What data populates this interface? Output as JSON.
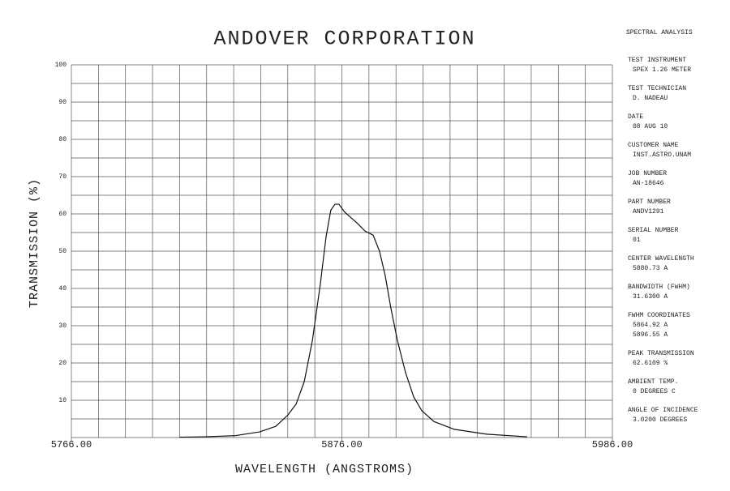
{
  "chart_data": {
    "type": "line",
    "title": "ANDOVER CORPORATION",
    "xlabel": "WAVELENGTH (ANGSTROMS)",
    "ylabel": "TRANSMISSION (%)",
    "x": [
      5810,
      5820,
      5832.6,
      5842.5,
      5849.1,
      5854,
      5857.4,
      5860.7,
      5864,
      5867.2,
      5869.6,
      5871.5,
      5873.2,
      5874.8,
      5877.1,
      5882.1,
      5885.4,
      5888.7,
      5891.3,
      5893.6,
      5895.9,
      5898.6,
      5901.9,
      5905.2,
      5908.5,
      5913.4,
      5921.7,
      5934.9,
      5951.3
    ],
    "values": [
      0.1,
      0.2,
      0.5,
      1.5,
      3,
      6,
      9,
      15,
      26,
      41,
      54,
      61,
      62.6,
      62.6,
      60.5,
      57.6,
      55.4,
      54.3,
      50,
      43.5,
      34.8,
      26,
      17.4,
      10.9,
      7.2,
      4.3,
      2.2,
      0.9,
      0.2
    ],
    "color": "#111111",
    "xlim": [
      5766,
      5986
    ],
    "ylim": [
      0,
      100
    ],
    "xticks": [
      {
        "value": 5766,
        "label": "5766.00"
      },
      {
        "value": 5876,
        "label": "5876.00"
      },
      {
        "value": 5986,
        "label": "5986.00"
      }
    ],
    "yticks": [
      10,
      20,
      30,
      40,
      50,
      60,
      70,
      80,
      90,
      100
    ],
    "xgrid": [
      5766,
      5777,
      5788,
      5799,
      5810,
      5821,
      5832,
      5843,
      5854,
      5865,
      5876,
      5887,
      5898,
      5909,
      5920,
      5931,
      5942,
      5953,
      5964,
      5975,
      5986
    ],
    "ygrid": [
      0,
      5,
      10,
      15,
      20,
      25,
      30,
      35,
      40,
      45,
      50,
      55,
      60,
      65,
      70,
      75,
      80,
      85,
      90,
      95,
      100
    ],
    "grid": true
  },
  "panel": {
    "title": "SPECTRAL ANALYSIS",
    "fields": [
      {
        "label": "TEST INSTRUMENT",
        "lines": [
          "SPEX 1.26 METER"
        ]
      },
      {
        "label": "TEST TECHNICIAN",
        "lines": [
          "D. NADEAU"
        ]
      },
      {
        "label": "DATE",
        "lines": [
          "08 AUG 10"
        ]
      },
      {
        "label": "CUSTOMER NAME",
        "lines": [
          "INST.ASTRO.UNAM"
        ]
      },
      {
        "label": "JOB NUMBER",
        "lines": [
          "AN-18646"
        ]
      },
      {
        "label": "PART NUMBER",
        "lines": [
          "ANDV1291"
        ]
      },
      {
        "label": "SERIAL NUMBER",
        "lines": [
          "01"
        ]
      },
      {
        "label": "CENTER WAVELENGTH",
        "lines": [
          "5880.73 A"
        ]
      },
      {
        "label": "BANDWIDTH (FWHM)",
        "lines": [
          "31.6300 A"
        ]
      },
      {
        "label": "FWHM COORDINATES",
        "lines": [
          "5864.92 A",
          "5896.55 A"
        ]
      },
      {
        "label": "PEAK TRANSMISSION",
        "lines": [
          "62.6109 %"
        ]
      },
      {
        "label": "AMBIENT TEMP.",
        "lines": [
          "0 DEGREES C"
        ]
      },
      {
        "label": "ANGLE OF INCIDENCE",
        "lines": [
          "3.0200 DEGREES"
        ]
      }
    ]
  }
}
